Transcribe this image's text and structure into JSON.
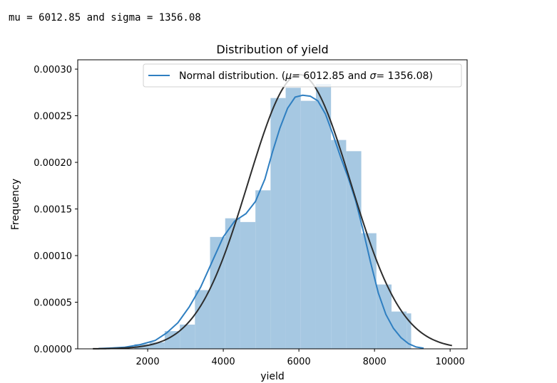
{
  "output_text": "mu = 6012.85 and sigma = 1356.08",
  "colors": {
    "hist": "#a6c8e2",
    "kde": "#2f7fc1",
    "normal": "#2d2d2d",
    "axes": "#000000"
  },
  "chart_data": {
    "type": "bar",
    "title": "Distribution of yield",
    "xlabel": "yield",
    "ylabel": "Frequency",
    "xlim": [
      150,
      10450
    ],
    "ylim": [
      0,
      0.00031
    ],
    "xticks": [
      2000,
      4000,
      6000,
      8000,
      10000
    ],
    "xtick_labels": [
      "2000",
      "4000",
      "6000",
      "8000",
      "10000"
    ],
    "yticks": [
      0,
      5e-05,
      0.0001,
      0.00015,
      0.0002,
      0.00025,
      0.0003
    ],
    "ytick_labels": [
      "0.00000",
      "0.00005",
      "0.00010",
      "0.00015",
      "0.00020",
      "0.00025",
      "0.00030"
    ],
    "legend": {
      "placement": "top-right",
      "label": "Normal distribution. ($\\mu=$ 6012.85 and $\\sigma=$ 1356.08)",
      "text_parts": [
        "Normal distribution. (",
        "μ",
        "= 6012.85 and ",
        "σ",
        "= 1356.08)"
      ]
    },
    "histogram": {
      "bins": [
        {
          "x0": 1650,
          "x1": 2050,
          "density": 5e-06
        },
        {
          "x0": 2050,
          "x1": 2450,
          "density": 7e-06
        },
        {
          "x0": 2450,
          "x1": 2850,
          "density": 1.9e-05
        },
        {
          "x0": 2850,
          "x1": 3250,
          "density": 2.6e-05
        },
        {
          "x0": 3250,
          "x1": 3650,
          "density": 6.3e-05
        },
        {
          "x0": 3650,
          "x1": 4050,
          "density": 0.00012
        },
        {
          "x0": 4050,
          "x1": 4450,
          "density": 0.00014
        },
        {
          "x0": 4450,
          "x1": 4850,
          "density": 0.000136
        },
        {
          "x0": 4850,
          "x1": 5250,
          "density": 0.00017
        },
        {
          "x0": 5250,
          "x1": 5650,
          "density": 0.000269
        },
        {
          "x0": 5650,
          "x1": 6050,
          "density": 0.00028
        },
        {
          "x0": 6050,
          "x1": 6450,
          "density": 0.000266
        },
        {
          "x0": 6450,
          "x1": 6850,
          "density": 0.000284
        },
        {
          "x0": 6850,
          "x1": 7250,
          "density": 0.000224
        },
        {
          "x0": 7250,
          "x1": 7650,
          "density": 0.000212
        },
        {
          "x0": 7650,
          "x1": 8050,
          "density": 0.000124
        },
        {
          "x0": 8050,
          "x1": 8450,
          "density": 6.9e-05
        },
        {
          "x0": 8450,
          "x1": 8850,
          "density": 4e-05
        },
        {
          "x0": 8850,
          "x1": 8970,
          "density": 3.8e-05
        }
      ]
    },
    "series": [
      {
        "name": "Normal distribution. ($\\mu=$ 6012.85 and $\\sigma=$ 1356.08)",
        "kind": "normal_fit",
        "mu": 6012.85,
        "sigma": 1356.08,
        "x_range": [
          550,
          10050
        ]
      },
      {
        "kind": "kde",
        "x": [
          700,
          1000,
          1400,
          1800,
          2200,
          2500,
          2800,
          3100,
          3400,
          3700,
          4000,
          4300,
          4600,
          4850,
          5100,
          5300,
          5500,
          5700,
          5900,
          6100,
          6300,
          6500,
          6700,
          6900,
          7100,
          7300,
          7500,
          7700,
          7900,
          8100,
          8300,
          8500,
          8700,
          8900,
          9100,
          9300
        ],
        "y": [
          3e-07,
          8e-07,
          1.7e-06,
          4.5e-06,
          9e-06,
          1.7e-05,
          2.8e-05,
          4.5e-05,
          6.6e-05,
          9.3e-05,
          0.00012,
          0.000137,
          0.000145,
          0.000158,
          0.000182,
          0.000211,
          0.000237,
          0.000258,
          0.00027,
          0.000272,
          0.000271,
          0.000266,
          0.000252,
          0.00023,
          0.000206,
          0.000184,
          0.000159,
          0.000127,
          9.2e-05,
          6e-05,
          3.7e-05,
          2.2e-05,
          1.2e-05,
          5.5e-06,
          2e-06,
          7e-07
        ]
      }
    ]
  }
}
